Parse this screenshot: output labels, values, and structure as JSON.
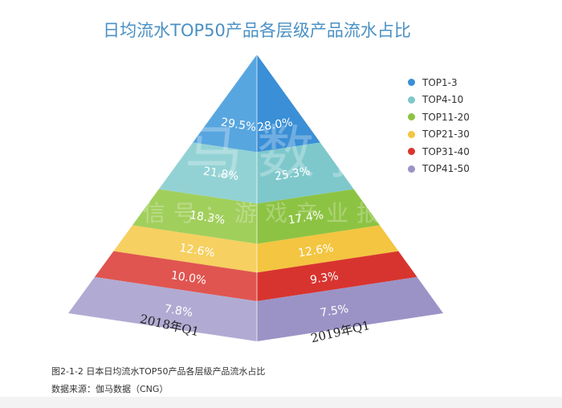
{
  "chart_data": {
    "type": "pyramid",
    "title": "日均流水TOP50产品各层级产品流水占比",
    "categories": [
      "TOP1-3",
      "TOP4-10",
      "TOP11-20",
      "TOP21-30",
      "TOP31-40",
      "TOP41-50"
    ],
    "colors": [
      "#3a8fd6",
      "#7ec8cc",
      "#8dc343",
      "#f3c540",
      "#d8342f",
      "#9b93c6"
    ],
    "colors_light": [
      "#58a6e0",
      "#93d2d4",
      "#a1cf5c",
      "#f6d060",
      "#e05550",
      "#b1abd3"
    ],
    "series": [
      {
        "name": "2018年Q1",
        "values": [
          29.5,
          21.8,
          18.3,
          12.6,
          10.0,
          7.8
        ],
        "labels": [
          "29.5%",
          "21.8%",
          "18.3%",
          "12.6%",
          "10.0%",
          "7.8%"
        ]
      },
      {
        "name": "2019年Q1",
        "values": [
          28.0,
          25.3,
          17.4,
          12.6,
          9.3,
          7.5
        ],
        "labels": [
          "28.0%",
          "25.3%",
          "17.4%",
          "12.6%",
          "9.3%",
          "7.5%"
        ]
      }
    ],
    "legend_position": "right"
  },
  "watermark": {
    "main": "伽马数据",
    "sub": "微信号：游戏产业报告"
  },
  "caption": {
    "figure": "图2-1-2 日本日均流水TOP50产品各层级产品流水占比",
    "source": "数据来源：伽马数据（CNG）"
  }
}
